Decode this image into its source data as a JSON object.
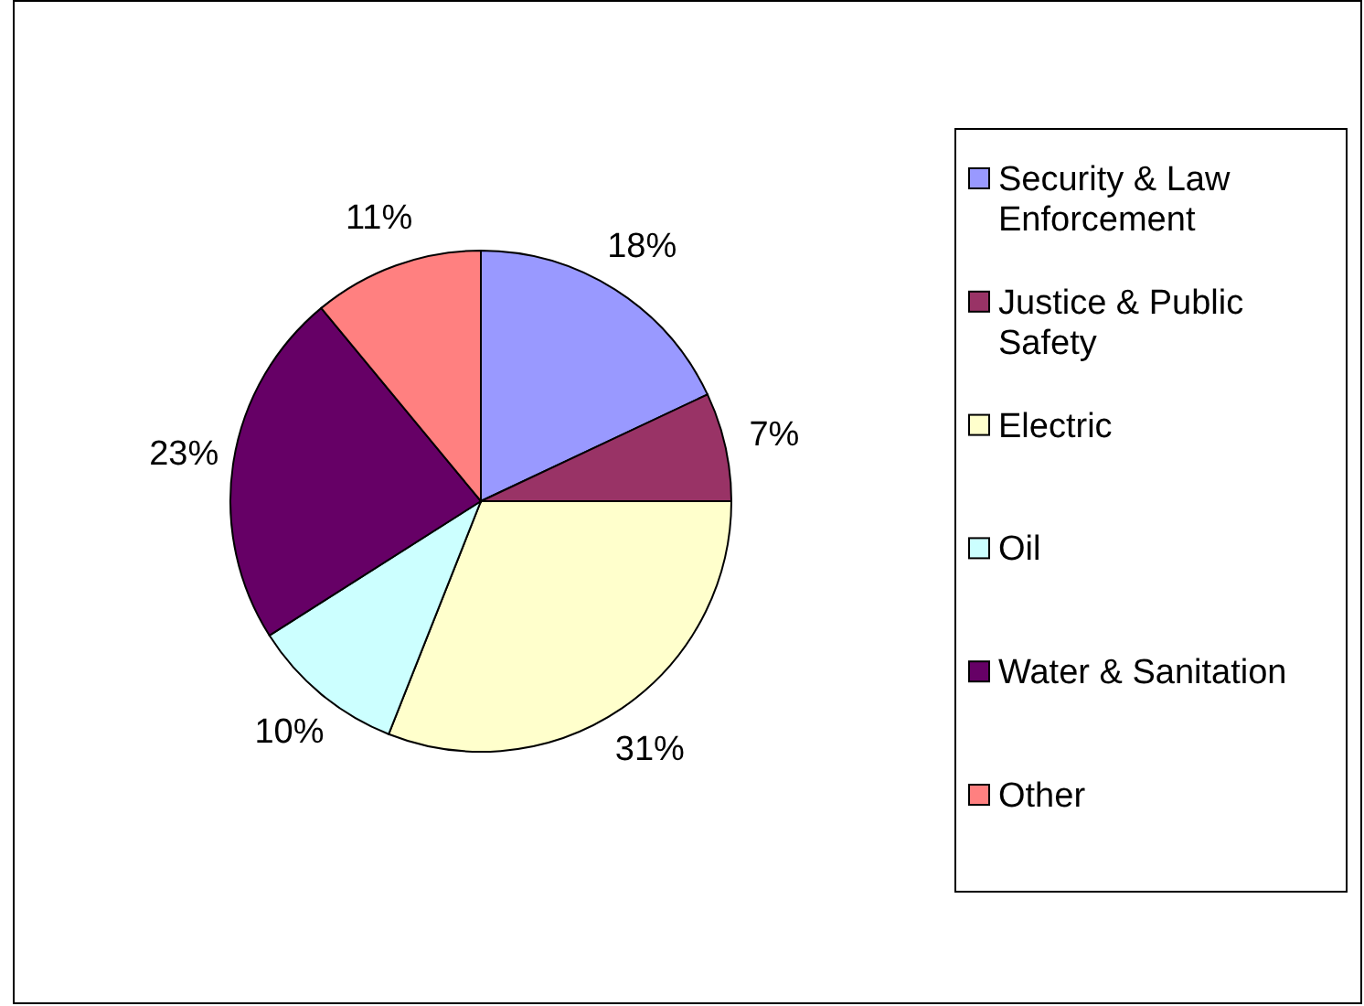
{
  "chart_data": {
    "type": "pie",
    "categories": [
      "Security & Law Enforcement",
      "Justice & Public Safety",
      "Electric",
      "Oil",
      "Water & Sanitation",
      "Other"
    ],
    "values": [
      18,
      7,
      31,
      10,
      23,
      11
    ],
    "value_labels": [
      "18%",
      "7%",
      "31%",
      "10%",
      "23%",
      "11%"
    ],
    "colors": [
      "#9999ff",
      "#993366",
      "#ffffcc",
      "#ccffff",
      "#660066",
      "#ff8080"
    ],
    "legend": "right"
  }
}
